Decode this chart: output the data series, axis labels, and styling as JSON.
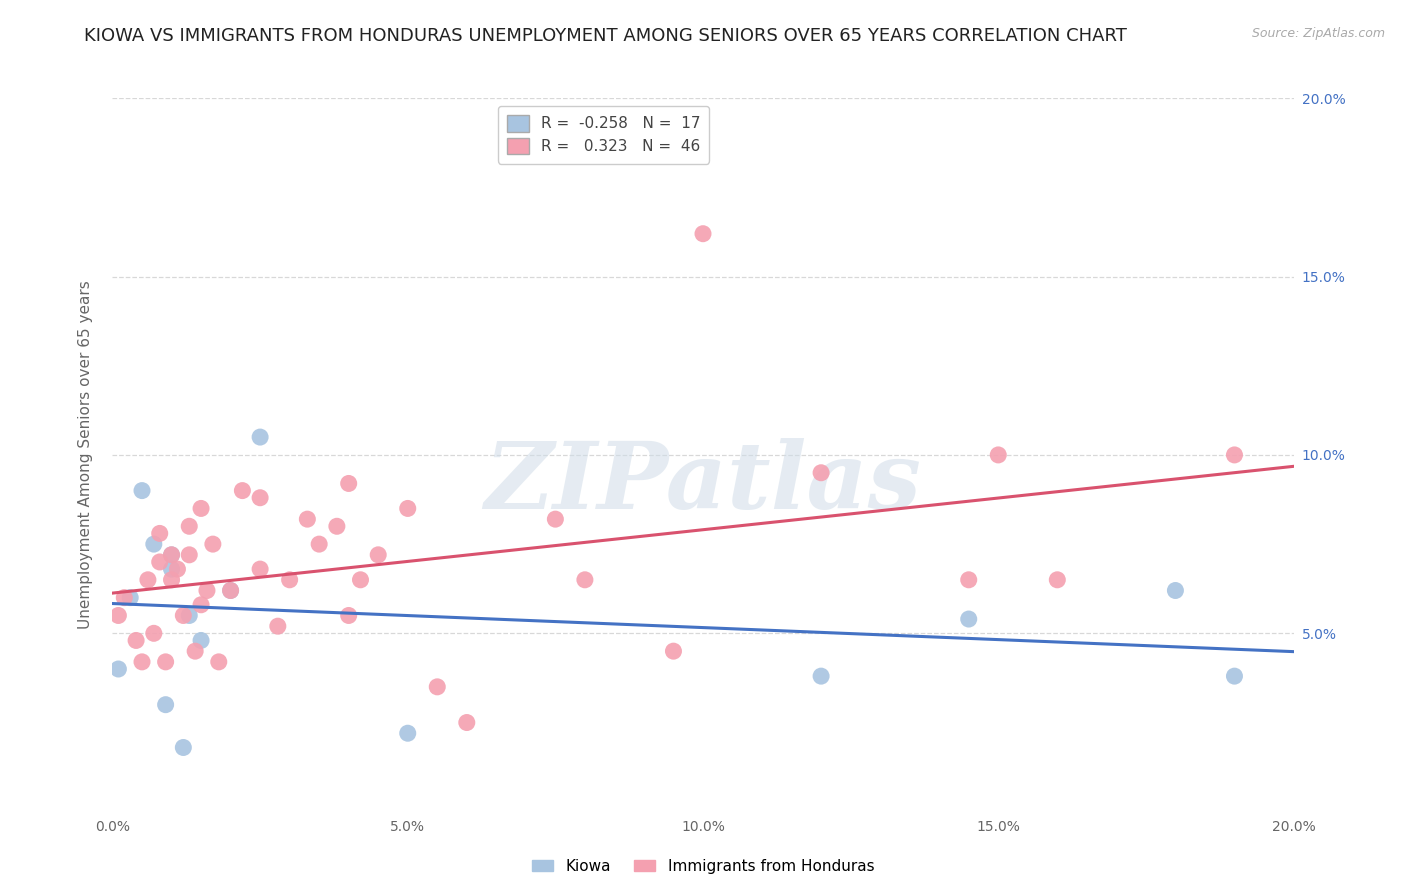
{
  "title": "KIOWA VS IMMIGRANTS FROM HONDURAS UNEMPLOYMENT AMONG SENIORS OVER 65 YEARS CORRELATION CHART",
  "source": "Source: ZipAtlas.com",
  "ylabel": "Unemployment Among Seniors over 65 years",
  "xlim": [
    0.0,
    0.2
  ],
  "ylim": [
    0.0,
    0.2
  ],
  "xticks": [
    0.0,
    0.05,
    0.1,
    0.15,
    0.2
  ],
  "yticks": [
    0.05,
    0.1,
    0.15,
    0.2
  ],
  "xtick_labels": [
    "0.0%",
    "5.0%",
    "10.0%",
    "15.0%",
    "20.0%"
  ],
  "right_ytick_labels": [
    "5.0%",
    "10.0%",
    "15.0%",
    "20.0%"
  ],
  "right_ytick_positions": [
    0.05,
    0.1,
    0.15,
    0.2
  ],
  "kiowa_color": "#a8c4e0",
  "honduras_color": "#f4a0b0",
  "kiowa_line_color": "#4472c4",
  "honduras_line_color": "#d9526e",
  "kiowa_R": -0.258,
  "kiowa_N": 17,
  "honduras_R": 0.323,
  "honduras_N": 46,
  "legend_label_kiowa": "Kiowa",
  "legend_label_honduras": "Immigrants from Honduras",
  "watermark_text": "ZIPatlas",
  "background_color": "#ffffff",
  "grid_color": "#d8d8d8",
  "title_fontsize": 13,
  "axis_label_fontsize": 11,
  "tick_fontsize": 10,
  "kiowa_x": [
    0.001,
    0.003,
    0.005,
    0.007,
    0.009,
    0.01,
    0.01,
    0.012,
    0.013,
    0.015,
    0.02,
    0.025,
    0.05,
    0.12,
    0.145,
    0.18,
    0.19
  ],
  "kiowa_y": [
    0.04,
    0.06,
    0.09,
    0.075,
    0.03,
    0.068,
    0.072,
    0.018,
    0.055,
    0.048,
    0.062,
    0.105,
    0.022,
    0.038,
    0.054,
    0.062,
    0.038
  ],
  "honduras_x": [
    0.001,
    0.002,
    0.004,
    0.005,
    0.006,
    0.007,
    0.008,
    0.008,
    0.009,
    0.01,
    0.01,
    0.011,
    0.012,
    0.013,
    0.013,
    0.014,
    0.015,
    0.015,
    0.016,
    0.017,
    0.018,
    0.02,
    0.022,
    0.025,
    0.025,
    0.028,
    0.03,
    0.033,
    0.035,
    0.038,
    0.04,
    0.04,
    0.042,
    0.045,
    0.05,
    0.055,
    0.06,
    0.075,
    0.08,
    0.095,
    0.1,
    0.12,
    0.145,
    0.15,
    0.16,
    0.19
  ],
  "honduras_y": [
    0.055,
    0.06,
    0.048,
    0.042,
    0.065,
    0.05,
    0.07,
    0.078,
    0.042,
    0.065,
    0.072,
    0.068,
    0.055,
    0.072,
    0.08,
    0.045,
    0.058,
    0.085,
    0.062,
    0.075,
    0.042,
    0.062,
    0.09,
    0.068,
    0.088,
    0.052,
    0.065,
    0.082,
    0.075,
    0.08,
    0.055,
    0.092,
    0.065,
    0.072,
    0.085,
    0.035,
    0.025,
    0.082,
    0.065,
    0.045,
    0.162,
    0.095,
    0.065,
    0.1,
    0.065,
    0.1
  ]
}
